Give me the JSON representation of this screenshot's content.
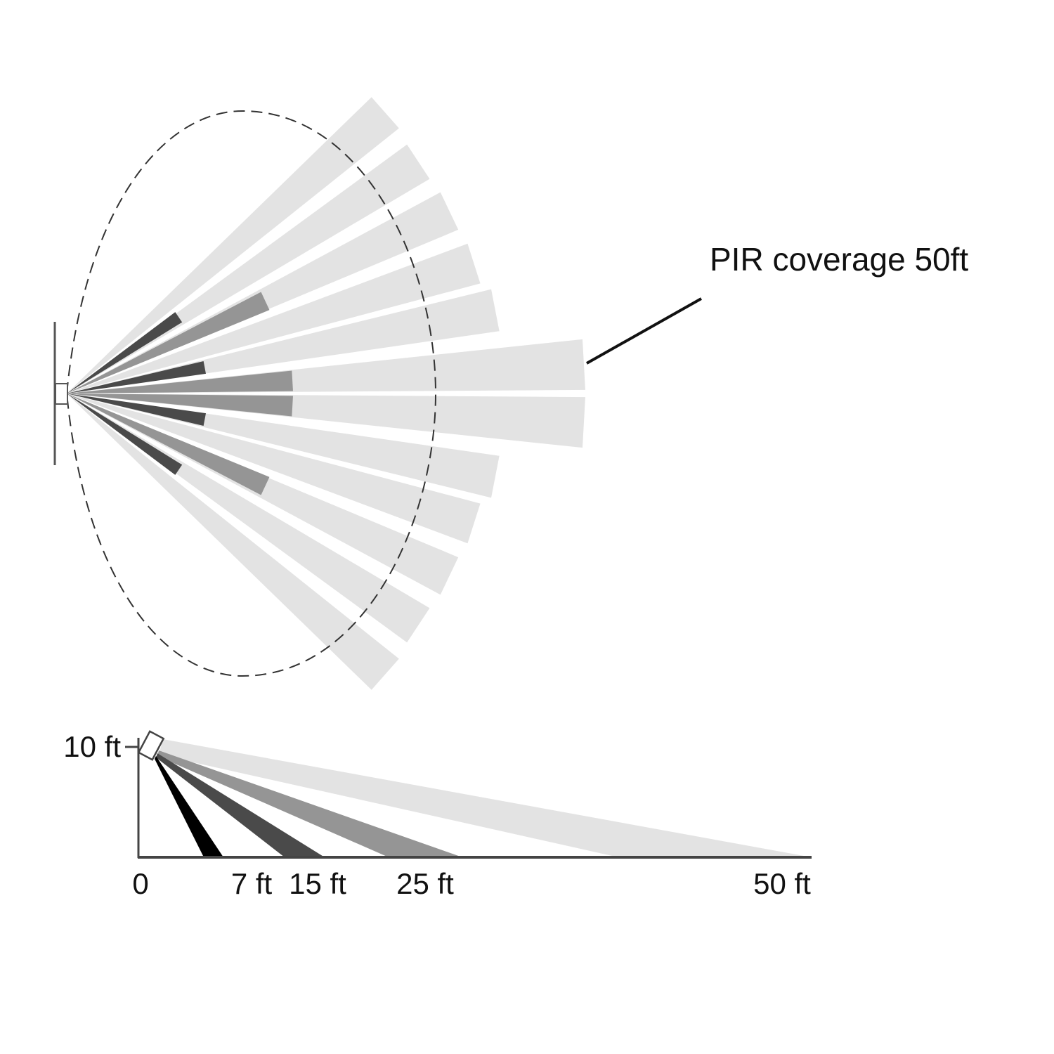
{
  "annotation": "PIR coverage 50ft",
  "side_view": {
    "height_label": "10 ft",
    "distance_labels": [
      "0",
      "7 ft",
      "15 ft",
      "25 ft",
      "50 ft"
    ]
  }
}
